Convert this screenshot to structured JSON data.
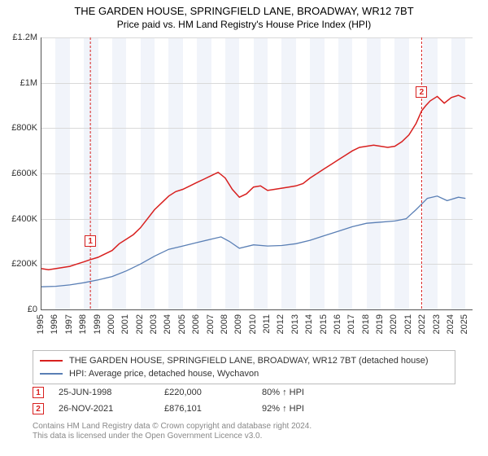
{
  "title": "THE GARDEN HOUSE, SPRINGFIELD LANE, BROADWAY, WR12 7BT",
  "subtitle": "Price paid vs. HM Land Registry's House Price Index (HPI)",
  "chart": {
    "type": "line",
    "background_color": "#ffffff",
    "alt_band_color": "#f1f4fa",
    "grid_color": "#d9d9d9",
    "axis_color": "#555555",
    "text_color": "#333333",
    "x_years": [
      1995,
      1996,
      1997,
      1998,
      1999,
      2000,
      2001,
      2002,
      2003,
      2004,
      2005,
      2006,
      2007,
      2008,
      2009,
      2010,
      2011,
      2012,
      2013,
      2014,
      2015,
      2016,
      2017,
      2018,
      2019,
      2020,
      2021,
      2022,
      2023,
      2024,
      2025
    ],
    "x_range": [
      1995,
      2025.5
    ],
    "y_range": [
      0,
      1200000
    ],
    "y_ticks": [
      0,
      200000,
      400000,
      600000,
      800000,
      1000000,
      1200000
    ],
    "y_tick_labels": [
      "£0",
      "£200K",
      "£400K",
      "£600K",
      "£800K",
      "£1M",
      "£1.2M"
    ],
    "series": [
      {
        "name": "THE GARDEN HOUSE, SPRINGFIELD LANE, BROADWAY, WR12 7BT (detached house)",
        "color": "#d8201f",
        "line_width": 1.5,
        "data": [
          [
            1995.0,
            180000
          ],
          [
            1995.5,
            175000
          ],
          [
            1996.0,
            180000
          ],
          [
            1996.5,
            185000
          ],
          [
            1997.0,
            190000
          ],
          [
            1997.5,
            200000
          ],
          [
            1998.0,
            210000
          ],
          [
            1998.46,
            220000
          ],
          [
            1999.0,
            230000
          ],
          [
            1999.5,
            245000
          ],
          [
            2000.0,
            260000
          ],
          [
            2000.5,
            290000
          ],
          [
            2001.0,
            310000
          ],
          [
            2001.5,
            330000
          ],
          [
            2002.0,
            360000
          ],
          [
            2002.5,
            400000
          ],
          [
            2003.0,
            440000
          ],
          [
            2003.5,
            470000
          ],
          [
            2004.0,
            500000
          ],
          [
            2004.5,
            520000
          ],
          [
            2005.0,
            530000
          ],
          [
            2005.5,
            545000
          ],
          [
            2006.0,
            560000
          ],
          [
            2006.5,
            575000
          ],
          [
            2007.0,
            590000
          ],
          [
            2007.5,
            605000
          ],
          [
            2008.0,
            580000
          ],
          [
            2008.5,
            530000
          ],
          [
            2009.0,
            495000
          ],
          [
            2009.5,
            510000
          ],
          [
            2010.0,
            540000
          ],
          [
            2010.5,
            545000
          ],
          [
            2011.0,
            525000
          ],
          [
            2011.5,
            530000
          ],
          [
            2012.0,
            535000
          ],
          [
            2012.5,
            540000
          ],
          [
            2013.0,
            545000
          ],
          [
            2013.5,
            555000
          ],
          [
            2014.0,
            580000
          ],
          [
            2014.5,
            600000
          ],
          [
            2015.0,
            620000
          ],
          [
            2015.5,
            640000
          ],
          [
            2016.0,
            660000
          ],
          [
            2016.5,
            680000
          ],
          [
            2017.0,
            700000
          ],
          [
            2017.5,
            715000
          ],
          [
            2018.0,
            720000
          ],
          [
            2018.5,
            725000
          ],
          [
            2019.0,
            720000
          ],
          [
            2019.5,
            715000
          ],
          [
            2020.0,
            720000
          ],
          [
            2020.5,
            740000
          ],
          [
            2021.0,
            770000
          ],
          [
            2021.5,
            820000
          ],
          [
            2021.9,
            876101
          ],
          [
            2022.2,
            900000
          ],
          [
            2022.5,
            920000
          ],
          [
            2023.0,
            940000
          ],
          [
            2023.5,
            910000
          ],
          [
            2024.0,
            935000
          ],
          [
            2024.5,
            945000
          ],
          [
            2025.0,
            930000
          ]
        ]
      },
      {
        "name": "HPI: Average price, detached house, Wychavon",
        "color": "#5a7fb5",
        "line_width": 1.3,
        "data": [
          [
            1995.0,
            100000
          ],
          [
            1996.0,
            102000
          ],
          [
            1997.0,
            108000
          ],
          [
            1998.0,
            118000
          ],
          [
            1999.0,
            130000
          ],
          [
            2000.0,
            145000
          ],
          [
            2001.0,
            170000
          ],
          [
            2002.0,
            200000
          ],
          [
            2003.0,
            235000
          ],
          [
            2004.0,
            265000
          ],
          [
            2005.0,
            280000
          ],
          [
            2006.0,
            295000
          ],
          [
            2007.0,
            310000
          ],
          [
            2007.7,
            320000
          ],
          [
            2008.3,
            300000
          ],
          [
            2009.0,
            270000
          ],
          [
            2010.0,
            285000
          ],
          [
            2011.0,
            280000
          ],
          [
            2012.0,
            282000
          ],
          [
            2013.0,
            290000
          ],
          [
            2014.0,
            305000
          ],
          [
            2015.0,
            325000
          ],
          [
            2016.0,
            345000
          ],
          [
            2017.0,
            365000
          ],
          [
            2018.0,
            380000
          ],
          [
            2019.0,
            385000
          ],
          [
            2020.0,
            390000
          ],
          [
            2020.8,
            400000
          ],
          [
            2021.5,
            440000
          ],
          [
            2022.3,
            490000
          ],
          [
            2023.0,
            500000
          ],
          [
            2023.7,
            480000
          ],
          [
            2024.5,
            495000
          ],
          [
            2025.0,
            490000
          ]
        ]
      }
    ],
    "markers": [
      {
        "n": "1",
        "year": 1998.46,
        "value": 220000,
        "color": "#d8201f"
      },
      {
        "n": "2",
        "year": 2021.9,
        "value": 876101,
        "color": "#d8201f"
      }
    ]
  },
  "legend": {
    "border_color": "#bbbbbb",
    "items": [
      {
        "color": "#d8201f",
        "label": "THE GARDEN HOUSE, SPRINGFIELD LANE, BROADWAY, WR12 7BT (detached house)"
      },
      {
        "color": "#5a7fb5",
        "label": "HPI: Average price, detached house, Wychavon"
      }
    ]
  },
  "sales": {
    "marker_border": "#d8201f",
    "rows": [
      {
        "n": "1",
        "date": "25-JUN-1998",
        "price": "£220,000",
        "delta": "80% ↑ HPI"
      },
      {
        "n": "2",
        "date": "26-NOV-2021",
        "price": "£876,101",
        "delta": "92% ↑ HPI"
      }
    ]
  },
  "footer": {
    "line1": "Contains HM Land Registry data © Crown copyright and database right 2024.",
    "line2": "This data is licensed under the Open Government Licence v3.0."
  }
}
